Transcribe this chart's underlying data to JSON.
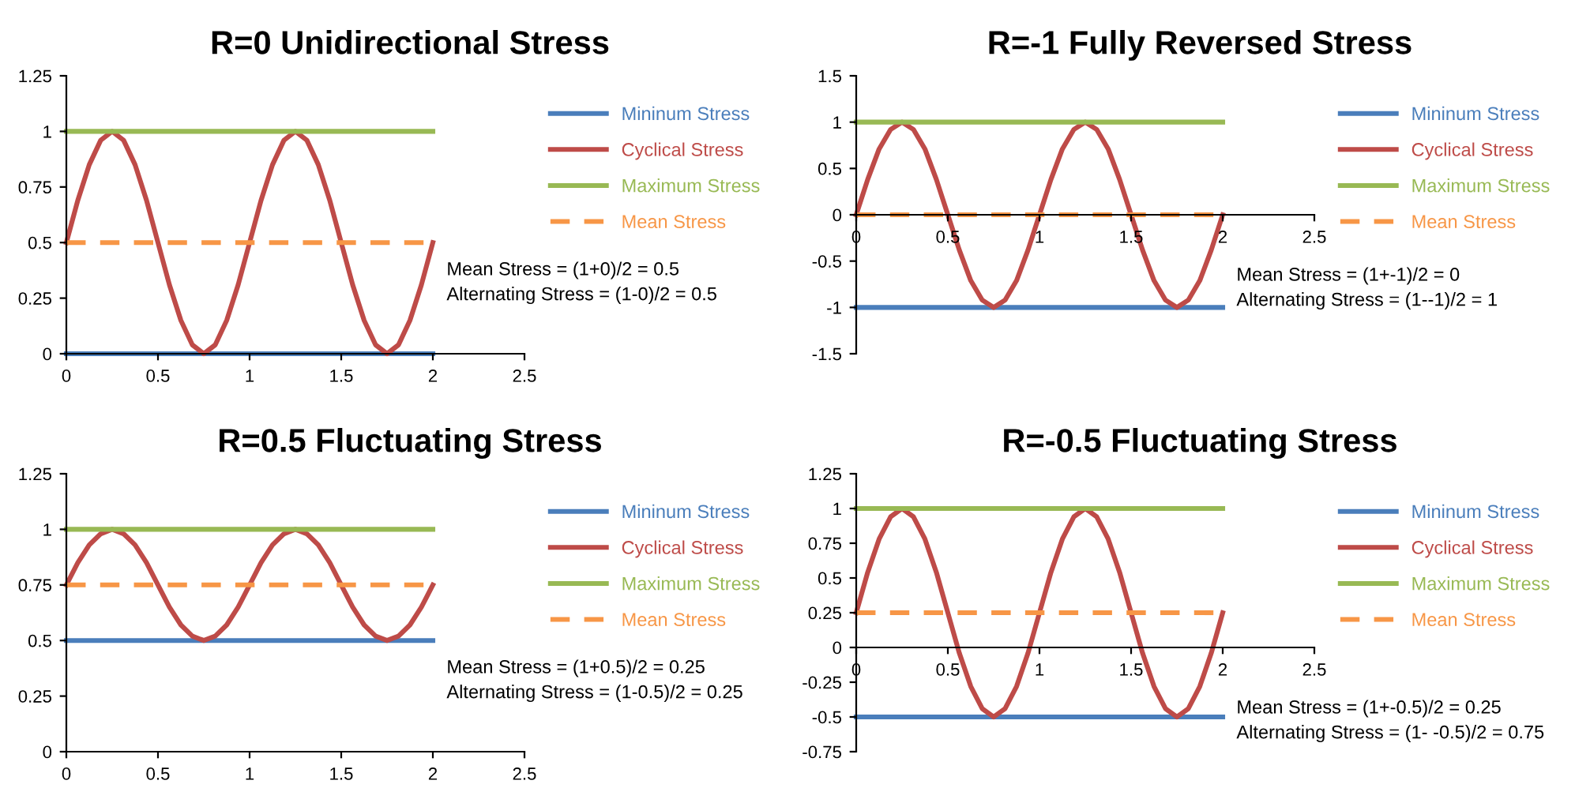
{
  "chart_data": [
    {
      "type": "line",
      "title": "R=0 Unidirectional Stress",
      "xlim": [
        0,
        2.5
      ],
      "xticks": [
        0,
        0.5,
        1,
        1.5,
        2,
        2.5
      ],
      "ylim": [
        0,
        1.25
      ],
      "yticks": [
        0,
        0.25,
        0.5,
        0.75,
        1,
        1.25
      ],
      "grid": false,
      "legend": "right",
      "marker": "none",
      "series": [
        {
          "name": "Mininum Stress",
          "color": "#4a7ebb",
          "x": [
            0,
            2
          ],
          "values": [
            0,
            0
          ]
        },
        {
          "name": "Cyclical Stress",
          "color": "#be4b48",
          "x": [
            0,
            0.0625,
            0.125,
            0.1875,
            0.25,
            0.3125,
            0.375,
            0.4375,
            0.5,
            0.5625,
            0.625,
            0.6875,
            0.75,
            0.8125,
            0.875,
            0.9375,
            1,
            1.0625,
            1.125,
            1.1875,
            1.25,
            1.3125,
            1.375,
            1.4375,
            1.5,
            1.5625,
            1.625,
            1.6875,
            1.75,
            1.8125,
            1.875,
            1.9375,
            2
          ],
          "values": [
            0.5,
            0.69,
            0.85,
            0.96,
            1,
            0.96,
            0.85,
            0.69,
            0.5,
            0.31,
            0.15,
            0.04,
            0,
            0.04,
            0.15,
            0.31,
            0.5,
            0.69,
            0.85,
            0.96,
            1,
            0.96,
            0.85,
            0.69,
            0.5,
            0.31,
            0.15,
            0.04,
            0,
            0.04,
            0.15,
            0.31,
            0.5
          ]
        },
        {
          "name": "Maximum Stress",
          "color": "#98b954",
          "x": [
            0,
            2
          ],
          "values": [
            1,
            1
          ]
        },
        {
          "name": "Mean Stress",
          "color": "#f79646",
          "line_style": "dashed",
          "x": [
            0,
            2
          ],
          "values": [
            0.5,
            0.5
          ]
        }
      ],
      "annotations": [
        "Mean Stress = (1+0)/2 = 0.5",
        "Alternating Stress = (1-0)/2 = 0.5"
      ]
    },
    {
      "type": "line",
      "title": "R=-1 Fully Reversed Stress",
      "xlim": [
        0,
        2.5
      ],
      "xticks": [
        0,
        0.5,
        1,
        1.5,
        2,
        2.5
      ],
      "ylim": [
        -1.5,
        1.5
      ],
      "yticks": [
        -1.5,
        -1,
        -0.5,
        0,
        0.5,
        1,
        1.5
      ],
      "grid": false,
      "legend": "right",
      "marker": "none",
      "series": [
        {
          "name": "Mininum Stress",
          "color": "#4a7ebb",
          "x": [
            0,
            2
          ],
          "values": [
            -1,
            -1
          ]
        },
        {
          "name": "Cyclical Stress",
          "color": "#be4b48",
          "x": [
            0,
            0.0625,
            0.125,
            0.1875,
            0.25,
            0.3125,
            0.375,
            0.4375,
            0.5,
            0.5625,
            0.625,
            0.6875,
            0.75,
            0.8125,
            0.875,
            0.9375,
            1,
            1.0625,
            1.125,
            1.1875,
            1.25,
            1.3125,
            1.375,
            1.4375,
            1.5,
            1.5625,
            1.625,
            1.6875,
            1.75,
            1.8125,
            1.875,
            1.9375,
            2
          ],
          "values": [
            0,
            0.38,
            0.71,
            0.92,
            1,
            0.92,
            0.71,
            0.38,
            0,
            -0.38,
            -0.71,
            -0.92,
            -1,
            -0.92,
            -0.71,
            -0.38,
            0,
            0.38,
            0.71,
            0.92,
            1,
            0.92,
            0.71,
            0.38,
            0,
            -0.38,
            -0.71,
            -0.92,
            -1,
            -0.92,
            -0.71,
            -0.38,
            0
          ]
        },
        {
          "name": "Maximum Stress",
          "color": "#98b954",
          "x": [
            0,
            2
          ],
          "values": [
            1,
            1
          ]
        },
        {
          "name": "Mean Stress",
          "color": "#f79646",
          "line_style": "dashed",
          "x": [
            0,
            2
          ],
          "values": [
            0,
            0
          ]
        }
      ],
      "annotations": [
        "Mean Stress = (1+-1)/2 = 0",
        "Alternating Stress = (1--1)/2 = 1"
      ]
    },
    {
      "type": "line",
      "title": "R=0.5 Fluctuating Stress",
      "xlim": [
        0,
        2.5
      ],
      "xticks": [
        0,
        0.5,
        1,
        1.5,
        2,
        2.5
      ],
      "ylim": [
        0,
        1.25
      ],
      "yticks": [
        0,
        0.25,
        0.5,
        0.75,
        1,
        1.25
      ],
      "grid": false,
      "legend": "right",
      "marker": "none",
      "series": [
        {
          "name": "Mininum Stress",
          "color": "#4a7ebb",
          "x": [
            0,
            2
          ],
          "values": [
            0.5,
            0.5
          ]
        },
        {
          "name": "Cyclical Stress",
          "color": "#be4b48",
          "x": [
            0,
            0.0625,
            0.125,
            0.1875,
            0.25,
            0.3125,
            0.375,
            0.4375,
            0.5,
            0.5625,
            0.625,
            0.6875,
            0.75,
            0.8125,
            0.875,
            0.9375,
            1,
            1.0625,
            1.125,
            1.1875,
            1.25,
            1.3125,
            1.375,
            1.4375,
            1.5,
            1.5625,
            1.625,
            1.6875,
            1.75,
            1.8125,
            1.875,
            1.9375,
            2
          ],
          "values": [
            0.75,
            0.85,
            0.93,
            0.98,
            1,
            0.98,
            0.93,
            0.85,
            0.75,
            0.65,
            0.57,
            0.52,
            0.5,
            0.52,
            0.57,
            0.65,
            0.75,
            0.85,
            0.93,
            0.98,
            1,
            0.98,
            0.93,
            0.85,
            0.75,
            0.65,
            0.57,
            0.52,
            0.5,
            0.52,
            0.57,
            0.65,
            0.75
          ]
        },
        {
          "name": "Maximum Stress",
          "color": "#98b954",
          "x": [
            0,
            2
          ],
          "values": [
            1,
            1
          ]
        },
        {
          "name": "Mean Stress",
          "color": "#f79646",
          "line_style": "dashed",
          "x": [
            0,
            2
          ],
          "values": [
            0.75,
            0.75
          ]
        }
      ],
      "annotations": [
        "Mean Stress = (1+0.5)/2 = 0.25",
        "Alternating Stress = (1-0.5)/2 = 0.25"
      ]
    },
    {
      "type": "line",
      "title": "R=-0.5 Fluctuating Stress",
      "xlim": [
        0,
        2.5
      ],
      "xticks": [
        0,
        0.5,
        1,
        1.5,
        2,
        2.5
      ],
      "ylim": [
        -0.75,
        1.25
      ],
      "yticks": [
        -0.75,
        -0.5,
        -0.25,
        0,
        0.25,
        0.5,
        0.75,
        1,
        1.25
      ],
      "grid": false,
      "legend": "right",
      "marker": "none",
      "series": [
        {
          "name": "Mininum Stress",
          "color": "#4a7ebb",
          "x": [
            0,
            2
          ],
          "values": [
            -0.5,
            -0.5
          ]
        },
        {
          "name": "Cyclical Stress",
          "color": "#be4b48",
          "x": [
            0,
            0.0625,
            0.125,
            0.1875,
            0.25,
            0.3125,
            0.375,
            0.4375,
            0.5,
            0.5625,
            0.625,
            0.6875,
            0.75,
            0.8125,
            0.875,
            0.9375,
            1,
            1.0625,
            1.125,
            1.1875,
            1.25,
            1.3125,
            1.375,
            1.4375,
            1.5,
            1.5625,
            1.625,
            1.6875,
            1.75,
            1.8125,
            1.875,
            1.9375,
            2
          ],
          "values": [
            0.25,
            0.54,
            0.78,
            0.94,
            1,
            0.94,
            0.78,
            0.54,
            0.25,
            -0.04,
            -0.28,
            -0.44,
            -0.5,
            -0.44,
            -0.28,
            -0.04,
            0.25,
            0.54,
            0.78,
            0.94,
            1,
            0.94,
            0.78,
            0.54,
            0.25,
            -0.04,
            -0.28,
            -0.44,
            -0.5,
            -0.44,
            -0.28,
            -0.04,
            0.25
          ]
        },
        {
          "name": "Maximum Stress",
          "color": "#98b954",
          "x": [
            0,
            2
          ],
          "values": [
            1,
            1
          ]
        },
        {
          "name": "Mean Stress",
          "color": "#f79646",
          "line_style": "dashed",
          "x": [
            0,
            2
          ],
          "values": [
            0.25,
            0.25
          ]
        }
      ],
      "annotations": [
        "Mean Stress = (1+-0.5)/2 = 0.25",
        "Alternating Stress = (1- -0.5)/2 = 0.75"
      ]
    }
  ]
}
